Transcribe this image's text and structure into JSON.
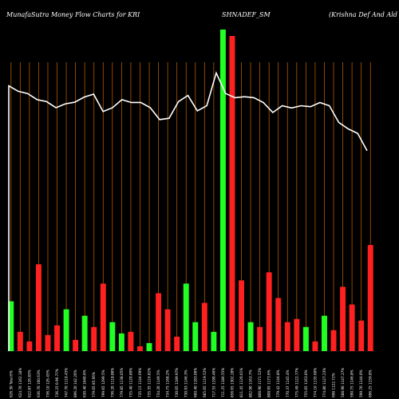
{
  "chart_data": {
    "type": "bar",
    "title_parts": [
      "MunafaSutra  Money Flow  Charts for KRI",
      "SHNADEF_SM",
      "(Krishna  Def  And Ald In"
    ],
    "background": "#000000",
    "colors": {
      "up": "#22ff22",
      "down": "#ff2020",
      "grid": "#b35900",
      "line": "#ffffff"
    },
    "ylim": [
      0,
      100
    ],
    "bars": [
      {
        "value": 15.5,
        "dir": "up",
        "label": "626.30 Total:6%"
      },
      {
        "value": 6,
        "dir": "down",
        "label": "624.70 1162.18%"
      },
      {
        "value": 3,
        "dir": "down",
        "label": "622.87 126.85%"
      },
      {
        "value": 27,
        "dir": "down",
        "label": "636.70 160.63%"
      },
      {
        "value": 5,
        "dir": "down",
        "label": "736.10 126.45%"
      },
      {
        "value": 8,
        "dir": "down",
        "label": "736.25 0.96.77%"
      },
      {
        "value": 13,
        "dir": "up",
        "label": "747.70 1110.45%"
      },
      {
        "value": 3.5,
        "dir": "down",
        "label": "896.20 142.26%"
      },
      {
        "value": 11,
        "dir": "up",
        "label": "630.40 1040.6%"
      },
      {
        "value": 7.5,
        "dir": "down",
        "label": "779.05 85.66%"
      },
      {
        "value": 21,
        "dir": "down",
        "label": "799.65 1299.5%"
      },
      {
        "value": 9,
        "dir": "up",
        "label": "736.20 1118.86%"
      },
      {
        "value": 5.5,
        "dir": "up",
        "label": "779.85 1138.05%"
      },
      {
        "value": 6,
        "dir": "down",
        "label": "735.40 1120.89%"
      },
      {
        "value": 1.5,
        "dir": "down",
        "label": "735.15 1144.69%"
      },
      {
        "value": 2.5,
        "dir": "up",
        "label": "735.35 1116.81%"
      },
      {
        "value": 18,
        "dir": "down",
        "label": "734.20 1149.5%"
      },
      {
        "value": 13,
        "dir": "down",
        "label": "734.75 1168.2%"
      },
      {
        "value": 4.5,
        "dir": "down",
        "label": "730.05 1189.97%"
      },
      {
        "value": 21,
        "dir": "up",
        "label": "730.93 1146.3%"
      },
      {
        "value": 9,
        "dir": "up",
        "label": "660.40 1183.06%"
      },
      {
        "value": 15,
        "dir": "down",
        "label": "685.05 1119.52%"
      },
      {
        "value": 6,
        "dir": "up",
        "label": "717.55 1190.46%"
      },
      {
        "value": 100,
        "dir": "up",
        "label": "711.25 1186.55%"
      },
      {
        "value": 98,
        "dir": "down",
        "label": "856.65 1302.28%"
      },
      {
        "value": 22,
        "dir": "down",
        "label": "811.45 1120.01%"
      },
      {
        "value": 9,
        "dir": "up",
        "label": "802.90 1163.7%"
      },
      {
        "value": 7.5,
        "dir": "down",
        "label": "808.90 1171.52%"
      },
      {
        "value": 24.5,
        "dir": "down",
        "label": "808.95 1173.6%"
      },
      {
        "value": 16.5,
        "dir": "down",
        "label": "779.42 1144.8%"
      },
      {
        "value": 9,
        "dir": "down",
        "label": "770.37 1145.4%"
      },
      {
        "value": 10,
        "dir": "down",
        "label": "775.49 1122.77%"
      },
      {
        "value": 7.5,
        "dir": "up",
        "label": "755.05 1163.0%"
      },
      {
        "value": 3,
        "dir": "down",
        "label": "774.10 1135.60%"
      },
      {
        "value": 11,
        "dir": "up",
        "label": "774.80 1127.23%"
      },
      {
        "value": 6.5,
        "dir": "down",
        "label": "698 1122.72%"
      },
      {
        "value": 20,
        "dir": "down",
        "label": "588.90 1147.27%"
      },
      {
        "value": 14.5,
        "dir": "down",
        "label": "590.75 1146.8%"
      },
      {
        "value": 9.5,
        "dir": "down",
        "label": "599.70 1144.0%"
      },
      {
        "value": 33,
        "dir": "down",
        "label": "696.25 1159.8%"
      }
    ],
    "line_values": [
      82.5,
      80.8,
      80.1,
      78.2,
      77.6,
      75.7,
      76.9,
      77.4,
      79,
      79.9,
      74.5,
      75.7,
      78.2,
      77.3,
      77.3,
      75.7,
      72,
      72.4,
      77.6,
      79.5,
      74.7,
      76.3,
      86.5,
      80.1,
      78.8,
      79.1,
      78.8,
      77.3,
      74.2,
      76.3,
      75.6,
      76.3,
      76,
      77.3,
      76.3,
      71.1,
      69.1,
      67.7,
      62.3
    ]
  }
}
